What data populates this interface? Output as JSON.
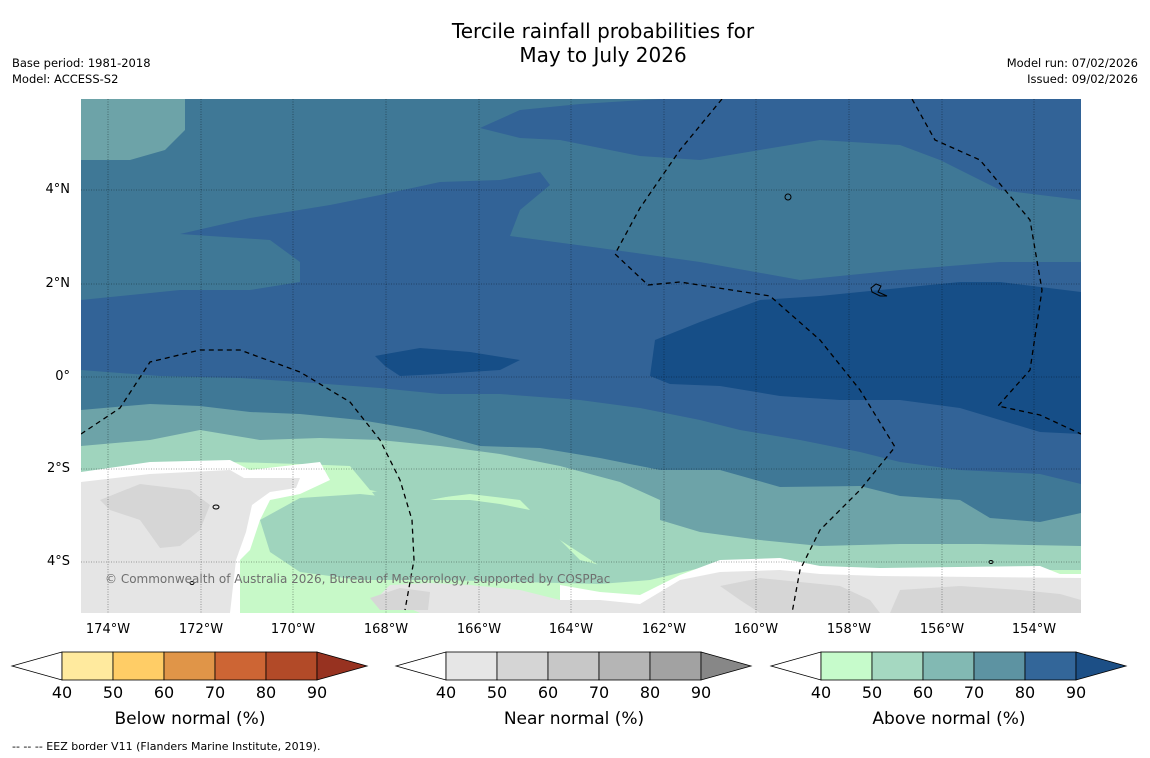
{
  "title": {
    "line1": "Tercile rainfall probabilities for",
    "line2": "May to July 2026"
  },
  "meta": {
    "base_period": "Base period: 1981-2018",
    "model": "Model: ACCESS-S2",
    "model_run": "Model run: 07/02/2026",
    "issued": "Issued: 09/02/2026"
  },
  "map": {
    "credit": "© Commonwealth of Australia 2026, Bureau of Meteorology, supported by COSPPac",
    "lat_labels": [
      "4°N",
      "2°N",
      "0°",
      "2°S",
      "4°S"
    ],
    "lon_labels": [
      "174°W",
      "172°W",
      "170°W",
      "168°W",
      "166°W",
      "164°W",
      "162°W",
      "160°W",
      "158°W",
      "156°W",
      "154°W"
    ],
    "colors": {
      "above_50": "#c7f9c8",
      "above_60": "#9fd4bd",
      "above_70": "#6da3a8",
      "above_80": "#3f7896",
      "above_90": "#326397",
      "above_max": "#164e87",
      "near_50": "#e5e5e5",
      "near_60": "#d6d6d6",
      "border": "#000000"
    }
  },
  "colorbars": [
    {
      "label": "Below normal (%)",
      "ticks": [
        "40",
        "50",
        "60",
        "70",
        "80",
        "90"
      ],
      "colors": [
        "#ffffff",
        "#ffea9e",
        "#ffcd66",
        "#e09548",
        "#cd6534",
        "#b24a28",
        "#973220"
      ]
    },
    {
      "label": "Near normal (%)",
      "ticks": [
        "40",
        "50",
        "60",
        "70",
        "80",
        "90"
      ],
      "colors": [
        "#ffffff",
        "#e6e6e6",
        "#d5d5d5",
        "#c7c7c7",
        "#b5b5b5",
        "#a2a2a2",
        "#878787"
      ]
    },
    {
      "label": "Above normal (%)",
      "ticks": [
        "40",
        "50",
        "60",
        "70",
        "80",
        "90"
      ],
      "colors": [
        "#ffffff",
        "#c6fbcb",
        "#a5d8c1",
        "#82b9b3",
        "#5d93a2",
        "#336699",
        "#1c4f86"
      ]
    }
  ],
  "footnote": "--  --  -- EEZ border V11 (Flanders Marine Institute, 2019)."
}
